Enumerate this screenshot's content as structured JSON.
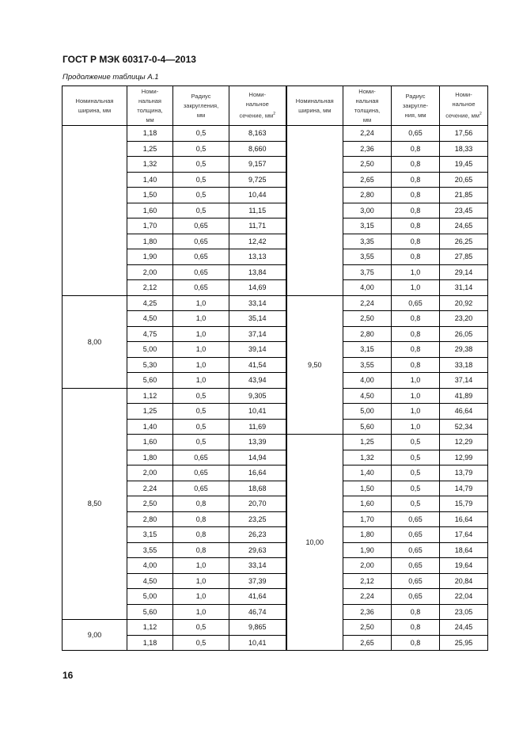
{
  "header": {
    "standard": "ГОСТ Р МЭК 60317-0-4—2013",
    "caption": "Продолжение таблицы А.1",
    "page_number": "16"
  },
  "columns": [
    [
      "Номинальная",
      "ширина, мм"
    ],
    [
      "Номи-",
      "нальная",
      "толщина,",
      "мм"
    ],
    [
      "Радиус",
      "закругления,",
      "мм"
    ],
    [
      "Номи-",
      "нальное",
      "сечение, мм",
      "2"
    ],
    [
      "Номинальная",
      "ширина, мм"
    ],
    [
      "Номи-",
      "нальная",
      "толщина,",
      "мм"
    ],
    [
      "Радиус",
      "закругле-",
      "ния, мм"
    ],
    [
      "Номи-",
      "нальное",
      "сечение, мм",
      "2"
    ]
  ],
  "left_groups": [
    {
      "width": "",
      "span": 11
    },
    {
      "width": "8,00",
      "span": 6
    },
    {
      "width": "8,50",
      "span": 15
    },
    {
      "width": "9,00",
      "span": 2
    }
  ],
  "right_groups": [
    {
      "width": "",
      "span": 11
    },
    {
      "width": "9,50",
      "span": 9
    },
    {
      "width": "10,00",
      "span": 14
    }
  ],
  "left_rows": [
    [
      "1,18",
      "0,5",
      "8,163"
    ],
    [
      "1,25",
      "0,5",
      "8,660"
    ],
    [
      "1,32",
      "0,5",
      "9,157"
    ],
    [
      "1,40",
      "0,5",
      "9,725"
    ],
    [
      "1,50",
      "0,5",
      "10,44"
    ],
    [
      "1,60",
      "0,5",
      "11,15"
    ],
    [
      "1,70",
      "0,65",
      "11,71"
    ],
    [
      "1,80",
      "0,65",
      "12,42"
    ],
    [
      "1,90",
      "0,65",
      "13,13"
    ],
    [
      "2,00",
      "0,65",
      "13,84"
    ],
    [
      "2,12",
      "0,65",
      "14,69"
    ],
    [
      "4,25",
      "1,0",
      "33,14"
    ],
    [
      "4,50",
      "1,0",
      "35,14"
    ],
    [
      "4,75",
      "1,0",
      "37,14"
    ],
    [
      "5,00",
      "1,0",
      "39,14"
    ],
    [
      "5,30",
      "1,0",
      "41,54"
    ],
    [
      "5,60",
      "1,0",
      "43,94"
    ],
    [
      "1,12",
      "0,5",
      "9,305"
    ],
    [
      "1,25",
      "0,5",
      "10,41"
    ],
    [
      "1,40",
      "0,5",
      "11,69"
    ],
    [
      "1,60",
      "0,5",
      "13,39"
    ],
    [
      "1,80",
      "0,65",
      "14,94"
    ],
    [
      "2,00",
      "0,65",
      "16,64"
    ],
    [
      "2,24",
      "0,65",
      "18,68"
    ],
    [
      "2,50",
      "0,8",
      "20,70"
    ],
    [
      "2,80",
      "0,8",
      "23,25"
    ],
    [
      "3,15",
      "0,8",
      "26,23"
    ],
    [
      "3,55",
      "0,8",
      "29,63"
    ],
    [
      "4,00",
      "1,0",
      "33,14"
    ],
    [
      "4,50",
      "1,0",
      "37,39"
    ],
    [
      "5,00",
      "1,0",
      "41,64"
    ],
    [
      "5,60",
      "1,0",
      "46,74"
    ],
    [
      "1,12",
      "0,5",
      "9,865"
    ],
    [
      "1,18",
      "0,5",
      "10,41"
    ]
  ],
  "right_rows": [
    [
      "2,24",
      "0,65",
      "17,56"
    ],
    [
      "2,36",
      "0,8",
      "18,33"
    ],
    [
      "2,50",
      "0,8",
      "19,45"
    ],
    [
      "2,65",
      "0,8",
      "20,65"
    ],
    [
      "2,80",
      "0,8",
      "21,85"
    ],
    [
      "3,00",
      "0,8",
      "23,45"
    ],
    [
      "3,15",
      "0,8",
      "24,65"
    ],
    [
      "3,35",
      "0,8",
      "26,25"
    ],
    [
      "3,55",
      "0,8",
      "27,85"
    ],
    [
      "3,75",
      "1,0",
      "29,14"
    ],
    [
      "4,00",
      "1,0",
      "31,14"
    ],
    [
      "2,24",
      "0,65",
      "20,92"
    ],
    [
      "2,50",
      "0,8",
      "23,20"
    ],
    [
      "2,80",
      "0,8",
      "26,05"
    ],
    [
      "3,15",
      "0,8",
      "29,38"
    ],
    [
      "3,55",
      "0,8",
      "33,18"
    ],
    [
      "4,00",
      "1,0",
      "37,14"
    ],
    [
      "4,50",
      "1,0",
      "41,89"
    ],
    [
      "5,00",
      "1,0",
      "46,64"
    ],
    [
      "5,60",
      "1,0",
      "52,34"
    ],
    [
      "1,25",
      "0,5",
      "12,29"
    ],
    [
      "1,32",
      "0,5",
      "12,99"
    ],
    [
      "1,40",
      "0,5",
      "13,79"
    ],
    [
      "1,50",
      "0,5",
      "14,79"
    ],
    [
      "1,60",
      "0,5",
      "15,79"
    ],
    [
      "1,70",
      "0,65",
      "16,64"
    ],
    [
      "1,80",
      "0,65",
      "17,64"
    ],
    [
      "1,90",
      "0,65",
      "18,64"
    ],
    [
      "2,00",
      "0,65",
      "19,64"
    ],
    [
      "2,12",
      "0,65",
      "20,84"
    ],
    [
      "2,24",
      "0,65",
      "22,04"
    ],
    [
      "2,36",
      "0,8",
      "23,05"
    ],
    [
      "2,50",
      "0,8",
      "24,45"
    ],
    [
      "2,65",
      "0,8",
      "25,95"
    ]
  ]
}
